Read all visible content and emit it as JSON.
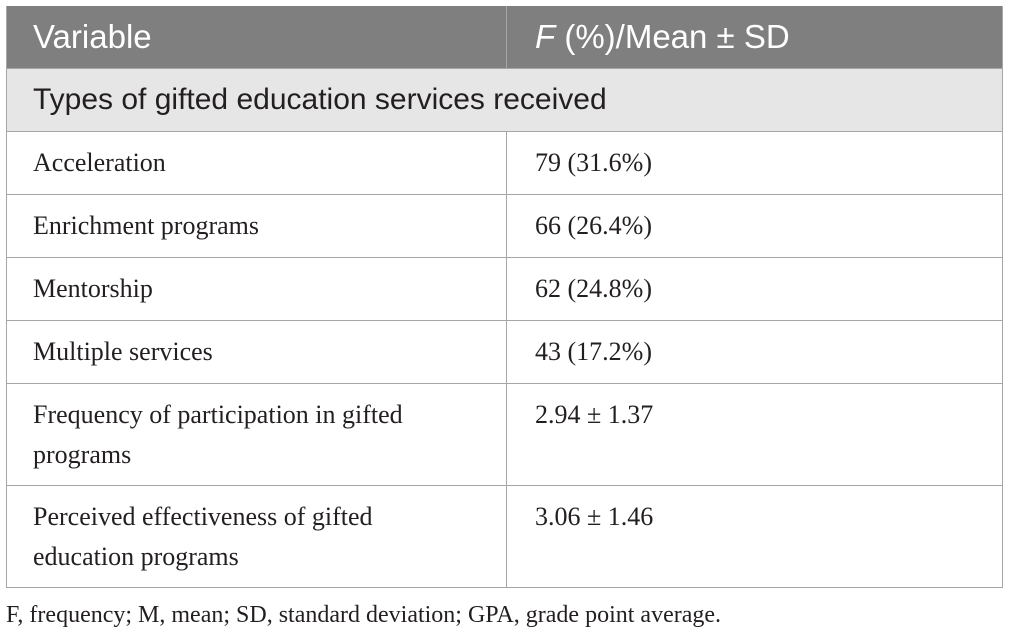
{
  "table": {
    "header": {
      "col1": "Variable",
      "col2_italic": "F",
      "col2_rest": " (%)/Mean ± SD"
    },
    "section_title": "Types of gifted education services received",
    "rows": [
      {
        "variable": "Acceleration",
        "value": "79 (31.6%)"
      },
      {
        "variable": "Enrichment programs",
        "value": "66 (26.4%)"
      },
      {
        "variable": "Mentorship",
        "value": "62 (24.8%)"
      },
      {
        "variable": "Multiple services",
        "value": "43 (17.2%)"
      },
      {
        "variable": "Frequency of participation in gifted programs",
        "value": "2.94 ± 1.37"
      },
      {
        "variable": "Perceived effectiveness of gifted education programs",
        "value": "3.06 ± 1.46"
      }
    ]
  },
  "footnote": "F, frequency; M, mean; SD, standard deviation; GPA, grade point average.",
  "colors": {
    "header_bg": "#7f7f7f",
    "section_bg": "#e6e6e6",
    "border": "#a6a6a6"
  }
}
